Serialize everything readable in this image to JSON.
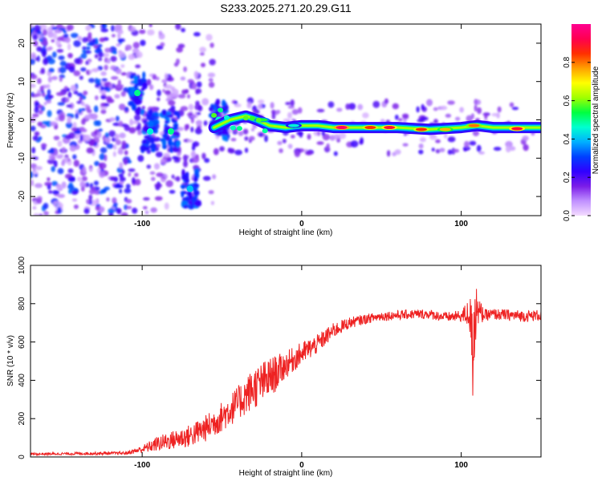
{
  "title": "S233.2025.271.20.29.G11",
  "chart_data": [
    {
      "type": "heatmap",
      "name": "spectrogram",
      "xlabel": "Height of straight line (km)",
      "ylabel": "Frequency (Hz)",
      "xlim": [
        -170,
        150
      ],
      "ylim": [
        -25,
        25
      ],
      "xticks": [
        -100,
        0,
        100
      ],
      "yticks": [
        -20,
        -10,
        0,
        10,
        20
      ],
      "ytick_labels": [
        "-20",
        "-10",
        "0",
        "10",
        "20"
      ],
      "colorbar": {
        "label": "Normalized spectral amplitude",
        "range": [
          0,
          1
        ],
        "ticks": [
          0.0,
          0.2,
          0.4,
          0.6,
          0.8
        ],
        "tick_labels": [
          "0.0",
          "0.2",
          "0.4",
          "0.6",
          "0.8"
        ],
        "colors": [
          "#f4dcff",
          "#c090ff",
          "#7a1ce8",
          "#3000ff",
          "#0040ff",
          "#00b0ff",
          "#00ffd0",
          "#00ff40",
          "#a0ff00",
          "#ffff00",
          "#ffa000",
          "#ff3000",
          "#ff0050",
          "#ff0090"
        ]
      },
      "ridge": {
        "points": [
          [
            -55,
            -2
          ],
          [
            -45,
            0
          ],
          [
            -35,
            1
          ],
          [
            -28,
            0
          ],
          [
            -20,
            -1.5
          ],
          [
            -10,
            -2
          ],
          [
            0,
            -1.5
          ],
          [
            10,
            -1.5
          ],
          [
            20,
            -2
          ],
          [
            40,
            -2
          ],
          [
            60,
            -2
          ],
          [
            80,
            -2.5
          ],
          [
            100,
            -2
          ],
          [
            110,
            -1.5
          ],
          [
            120,
            -2
          ],
          [
            150,
            -2
          ]
        ],
        "core_segments": [
          [
            -25,
            0,
            0.55
          ],
          [
            -5,
            -1.5,
            0.45
          ],
          [
            25,
            -2,
            0.95
          ],
          [
            43,
            -2,
            0.85
          ],
          [
            55,
            -2,
            0.9
          ],
          [
            75,
            -2.5,
            0.85
          ],
          [
            90,
            -2.5,
            0.75
          ],
          [
            108,
            -1.5,
            0.8
          ],
          [
            135,
            -2.3,
            0.9
          ]
        ]
      },
      "blobs": [
        [
          -103,
          7,
          0.4
        ],
        [
          -95,
          -3,
          0.35
        ],
        [
          -82,
          -3,
          0.4
        ],
        [
          -70,
          -18,
          0.3
        ],
        [
          -52,
          0,
          0.35
        ]
      ]
    },
    {
      "type": "line",
      "name": "snr",
      "xlabel": "Height of straight line (km)",
      "ylabel": "SNR (10 * v/v)",
      "xlim": [
        -170,
        150
      ],
      "ylim": [
        0,
        1000
      ],
      "xticks": [
        -100,
        0,
        100
      ],
      "yticks": [
        0,
        200,
        400,
        600,
        800,
        1000
      ],
      "ytick_labels": [
        "0",
        "200",
        "400",
        "600",
        "800",
        "1000"
      ],
      "series": [
        {
          "name": "SNR",
          "color": "#ee2222",
          "x": [
            -170,
            -110,
            -100,
            -90,
            -80,
            -70,
            -60,
            -50,
            -40,
            -30,
            -20,
            -10,
            0,
            10,
            20,
            30,
            40,
            50,
            60,
            70,
            80,
            90,
            100,
            105,
            108,
            110,
            115,
            120,
            130,
            140,
            150
          ],
          "y": [
            15,
            20,
            40,
            70,
            90,
            110,
            150,
            210,
            280,
            360,
            410,
            480,
            540,
            590,
            660,
            700,
            720,
            735,
            740,
            745,
            745,
            730,
            735,
            750,
            620,
            760,
            740,
            745,
            740,
            735,
            740
          ],
          "noise": [
            6,
            8,
            20,
            40,
            50,
            60,
            70,
            80,
            90,
            110,
            110,
            70,
            60,
            50,
            40,
            30,
            25,
            25,
            25,
            25,
            25,
            25,
            30,
            80,
            260,
            80,
            30,
            30,
            30,
            30,
            30
          ]
        }
      ]
    }
  ]
}
